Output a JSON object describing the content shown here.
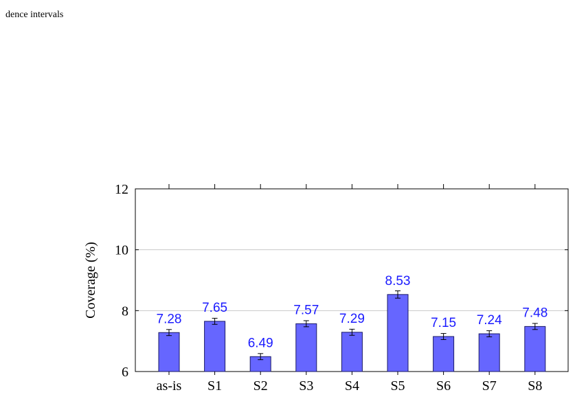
{
  "caption": "dence intervals",
  "colors": {
    "bar_fill": "#6666ff",
    "bar_stroke": "#1a1a66",
    "label": "#1a1aff",
    "grid": "#c8c8c8"
  },
  "chart_data": {
    "type": "bar",
    "categories": [
      "as-is",
      "S1",
      "S2",
      "S3",
      "S4",
      "S5",
      "S6",
      "S7",
      "S8"
    ],
    "values": [
      7.28,
      7.65,
      6.49,
      7.57,
      7.29,
      8.53,
      7.15,
      7.24,
      7.48
    ],
    "error": [
      0.1,
      0.1,
      0.1,
      0.1,
      0.1,
      0.12,
      0.1,
      0.1,
      0.1
    ],
    "data_labels": [
      "7.28",
      "7.65",
      "6.49",
      "7.57",
      "7.29",
      "8.53",
      "7.15",
      "7.24",
      "7.48"
    ],
    "ylabel": "Coverage (%)",
    "ylim": [
      6,
      12
    ],
    "yticks": [
      6,
      8,
      10,
      12
    ],
    "ytick_labels": [
      "6",
      "8",
      "10",
      "12"
    ],
    "grid": true,
    "error_bars": true
  }
}
